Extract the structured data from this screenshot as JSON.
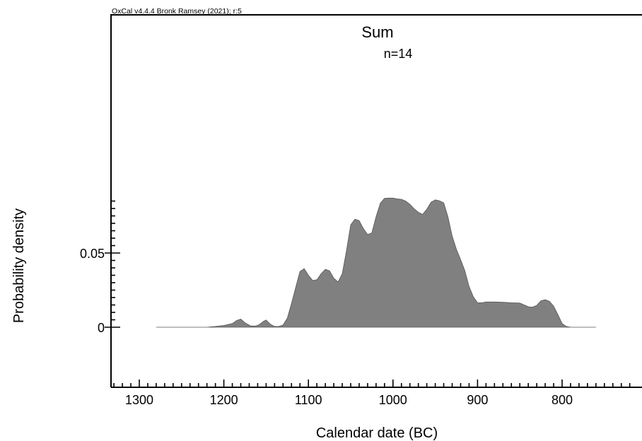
{
  "header": {
    "credit": "OxCal v4.4.4 Bronk Ramsey (2021); r:5"
  },
  "chart_data": {
    "type": "area",
    "title": "Sum",
    "subtitle": "n=14",
    "xlabel": "Calendar date (BC)",
    "ylabel": "Probability density",
    "xlim": [
      1335,
      715
    ],
    "x_reversed": true,
    "x_ticks": [
      "1300",
      "1200",
      "1100",
      "1000",
      "900",
      "800"
    ],
    "y_ticks": [
      "0",
      "0.05"
    ],
    "fill_color": "#808080",
    "series": [
      {
        "x": [
          1280,
          1240,
          1220,
          1210,
          1200,
          1190,
          1185,
          1180,
          1175,
          1168,
          1162,
          1158,
          1153,
          1150,
          1145,
          1140,
          1135,
          1130,
          1125,
          1120,
          1115,
          1110,
          1105,
          1100,
          1095,
          1090,
          1085,
          1080,
          1075,
          1070,
          1065,
          1060,
          1055,
          1050,
          1045,
          1040,
          1035,
          1030,
          1025,
          1020,
          1015,
          1010,
          1005,
          1000,
          995,
          990,
          985,
          980,
          975,
          970,
          965,
          960,
          955,
          950,
          945,
          940,
          935,
          930,
          925,
          920,
          915,
          910,
          905,
          900,
          895,
          890,
          880,
          870,
          860,
          850,
          840,
          835,
          830,
          825,
          820,
          815,
          810,
          805,
          800,
          795,
          790,
          780,
          760
        ],
        "y": [
          0,
          0,
          0,
          0.0005,
          0.0012,
          0.0025,
          0.0045,
          0.0055,
          0.003,
          0.0008,
          0.0008,
          0.0018,
          0.004,
          0.0048,
          0.002,
          0.0005,
          0.0005,
          0.0015,
          0.006,
          0.016,
          0.027,
          0.0375,
          0.0395,
          0.035,
          0.0315,
          0.032,
          0.036,
          0.039,
          0.038,
          0.033,
          0.0305,
          0.036,
          0.0515,
          0.069,
          0.0728,
          0.0718,
          0.0665,
          0.0625,
          0.0635,
          0.0745,
          0.0835,
          0.0868,
          0.087,
          0.087,
          0.0865,
          0.0862,
          0.085,
          0.0828,
          0.0798,
          0.0775,
          0.076,
          0.0795,
          0.0842,
          0.0858,
          0.0852,
          0.0838,
          0.0745,
          0.0615,
          0.0525,
          0.0455,
          0.038,
          0.0275,
          0.0205,
          0.0165,
          0.0165,
          0.017,
          0.017,
          0.0168,
          0.0165,
          0.0163,
          0.0138,
          0.0135,
          0.0147,
          0.0178,
          0.0185,
          0.0175,
          0.0142,
          0.0085,
          0.0025,
          0.0005,
          0,
          0,
          0
        ]
      }
    ]
  }
}
